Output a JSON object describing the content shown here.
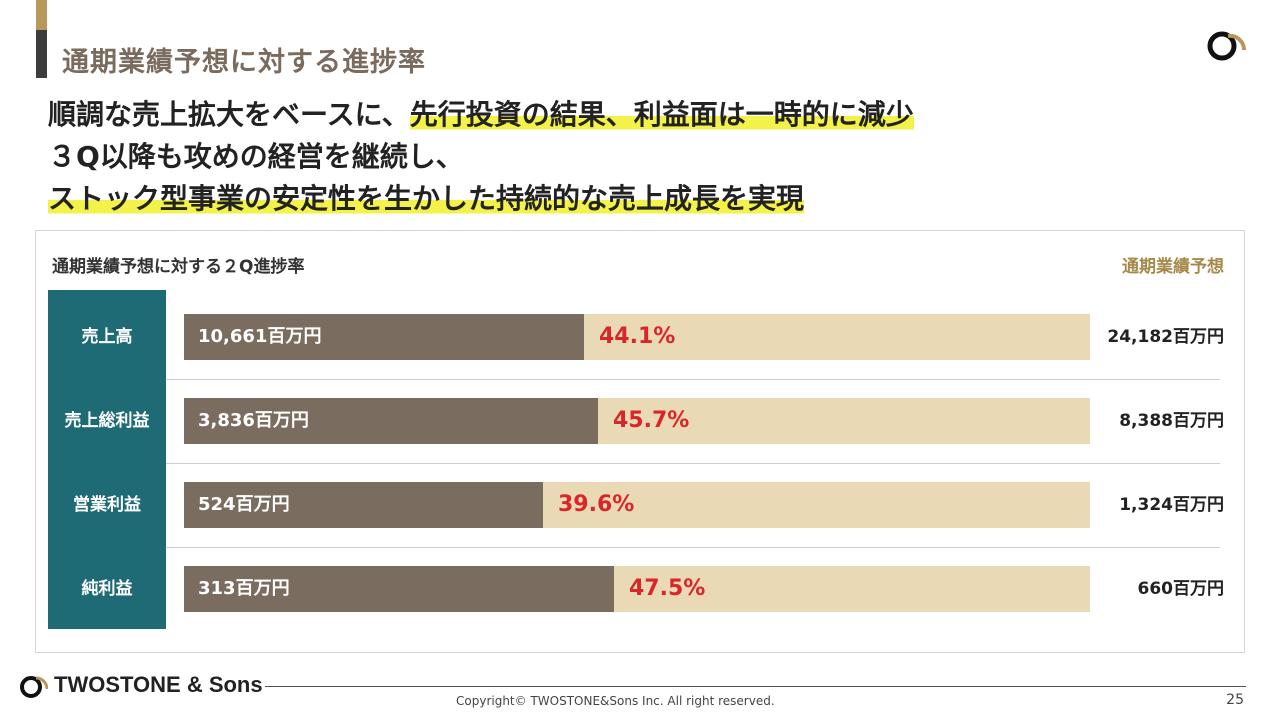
{
  "header": {
    "title": "通期業績予想に対する進捗率",
    "headline_lines": [
      [
        {
          "text": "順調な売上拡大をベースに、",
          "highlight": false
        },
        {
          "text": "先行投資の結果、利益面は一時的に減少",
          "highlight": true
        }
      ],
      [
        {
          "text": "３Q以降も攻めの経営を継続し、",
          "highlight": false
        }
      ],
      [
        {
          "text": "ストック型事業の安定性を生かした持続的な売上成長を実現",
          "highlight": true
        }
      ]
    ]
  },
  "panel": {
    "title": "通期業績予想に対する２Q進捗率",
    "right_title": "通期業績予想"
  },
  "chart_data": {
    "type": "bar",
    "orientation": "horizontal",
    "categories": [
      "売上高",
      "売上総利益",
      "営業利益",
      "純利益"
    ],
    "series": [
      {
        "values": [
          10661,
          3836,
          524,
          313
        ],
        "value_labels": [
          "10,661百万円",
          "3,836百万円",
          "524百万円",
          "313百万円"
        ]
      }
    ],
    "progress_percent": [
      44.1,
      45.7,
      39.6,
      47.5
    ],
    "progress_labels": [
      "44.1%",
      "45.7%",
      "39.6%",
      "47.5%"
    ],
    "forecast_values": [
      24182,
      8388,
      1324,
      660
    ],
    "forecast_labels": [
      "24,182百万円",
      "8,388百万円",
      "1,324百万円",
      "660百万円"
    ],
    "title": "通期業績予想に対する２Q進捗率",
    "unit": "百万円",
    "colors": {
      "fill": "#7b6c60",
      "track": "#e9dab5",
      "label_bg": "#1f6b75",
      "percent": "#d9262b"
    }
  },
  "footer": {
    "brand": "TWOSTONE & Sons",
    "copyright": "Copyright© TWOSTONE&Sons Inc. All right reserved.",
    "page": "25"
  }
}
